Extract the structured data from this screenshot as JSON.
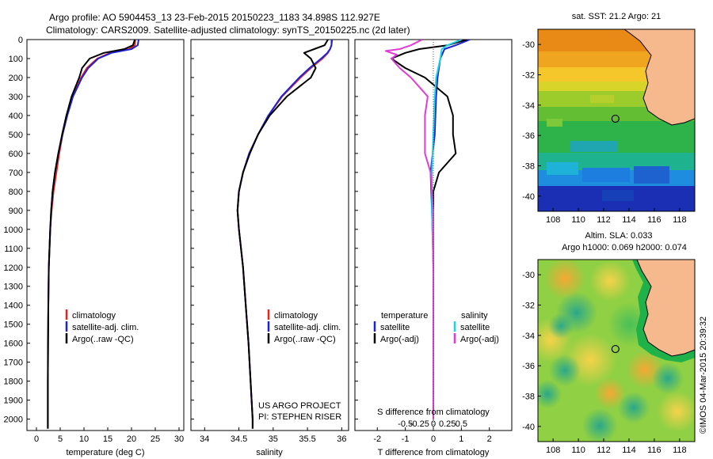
{
  "header": {
    "line1": "Argo profile: AO 5904453_13 23-Feb-2015 20150223_1183 34.898S 112.927E",
    "line2": "Climatology: CARS2009. Satellite-adjusted climatology: synTS_20150225.nc (2d later)"
  },
  "colors": {
    "climatology": "#e8231a",
    "satellite": "#1e22d6",
    "argo": "#000000",
    "salinity_satellite": "#19d6e6",
    "salinity_argo": "#e23ad6",
    "land": "#f5b98d"
  },
  "chart_data": [
    {
      "type": "line",
      "name": "temperature-profile",
      "xlabel": "temperature (deg C)",
      "xlim": [
        -2,
        31
      ],
      "ylim": [
        2060,
        0
      ],
      "xticks": [
        0,
        5,
        10,
        15,
        20,
        25,
        30
      ],
      "yticks": [
        0,
        100,
        200,
        300,
        400,
        500,
        600,
        700,
        800,
        900,
        1000,
        1100,
        1200,
        1300,
        1400,
        1500,
        1600,
        1700,
        1800,
        1900,
        2000
      ],
      "legend": [
        "climatology",
        "satellite-adj. clim.",
        "Argo(..raw -QC)"
      ],
      "series": [
        {
          "name": "climatology",
          "color": "#e8231a",
          "depth": [
            0,
            30,
            50,
            70,
            100,
            150,
            200,
            300,
            400,
            500,
            600,
            700,
            800,
            900,
            1000,
            1200,
            1400,
            1600,
            1800,
            2000,
            2050
          ],
          "values": [
            20.8,
            20.7,
            19.5,
            15.5,
            12.8,
            10.6,
            9.4,
            7.6,
            6.4,
            5.5,
            4.8,
            4.2,
            3.6,
            3.2,
            2.9,
            2.6,
            2.5,
            2.4,
            2.4,
            2.4,
            2.4
          ]
        },
        {
          "name": "satellite-adj. clim.",
          "color": "#1e22d6",
          "depth": [
            0,
            30,
            50,
            70,
            100,
            150,
            200,
            300,
            400,
            500,
            600,
            700,
            800,
            900,
            1000,
            1200,
            1400,
            1600,
            1800,
            2000,
            2050
          ],
          "values": [
            21.5,
            21.3,
            20.0,
            15.8,
            13.0,
            10.9,
            9.6,
            7.7,
            6.5,
            5.5,
            4.6,
            3.9,
            3.4,
            3.1,
            2.9,
            2.6,
            2.5,
            2.45,
            2.4,
            2.4,
            2.4
          ]
        },
        {
          "name": "Argo(..raw -QC)",
          "color": "#000000",
          "depth": [
            0,
            30,
            50,
            70,
            100,
            150,
            200,
            300,
            400,
            500,
            600,
            700,
            800,
            900,
            1000,
            1200,
            1400,
            1600,
            1800,
            2000,
            2050
          ],
          "values": [
            20.7,
            20.3,
            18.5,
            14.2,
            11.2,
            9.6,
            9.0,
            7.4,
            6.3,
            5.4,
            4.6,
            3.9,
            3.4,
            3.1,
            2.9,
            2.6,
            2.5,
            2.45,
            2.4,
            2.4,
            2.4
          ]
        }
      ]
    },
    {
      "type": "line",
      "name": "salinity-profile",
      "xlabel": "salinity",
      "xlim": [
        33.8,
        36.1
      ],
      "ylim": [
        2060,
        0
      ],
      "xticks": [
        34,
        34.5,
        35,
        35.5,
        36
      ],
      "legend": [
        "climatology",
        "satellite-adj. clim.",
        "Argo(..raw -QC)"
      ],
      "annotations": [
        "US ARGO PROJECT",
        "PI: STEPHEN RISER"
      ],
      "series": [
        {
          "name": "climatology",
          "color": "#e8231a",
          "depth": [
            0,
            30,
            50,
            70,
            100,
            150,
            200,
            300,
            400,
            500,
            600,
            700,
            800,
            900,
            1000,
            1200,
            1400,
            1600,
            1800,
            2000,
            2050
          ],
          "values": [
            35.85,
            35.85,
            35.83,
            35.8,
            35.72,
            35.55,
            35.4,
            35.13,
            34.93,
            34.78,
            34.65,
            34.56,
            34.5,
            34.48,
            34.5,
            34.56,
            34.6,
            34.64,
            34.67,
            34.7,
            34.7
          ]
        },
        {
          "name": "satellite-adj. clim.",
          "color": "#1e22d6",
          "depth": [
            0,
            30,
            50,
            70,
            100,
            150,
            200,
            300,
            400,
            500,
            600,
            700,
            800,
            900,
            1000,
            1200,
            1400,
            1600,
            1800,
            2000,
            2050
          ],
          "values": [
            35.86,
            35.85,
            35.83,
            35.79,
            35.7,
            35.53,
            35.38,
            35.12,
            34.93,
            34.78,
            34.65,
            34.56,
            34.5,
            34.48,
            34.5,
            34.56,
            34.6,
            34.64,
            34.67,
            34.7,
            34.7
          ]
        },
        {
          "name": "Argo(..raw -QC)",
          "color": "#000000",
          "depth": [
            0,
            30,
            50,
            70,
            100,
            150,
            200,
            300,
            400,
            500,
            600,
            700,
            800,
            900,
            1000,
            1200,
            1400,
            1600,
            1800,
            2000,
            2050
          ],
          "values": [
            35.8,
            35.75,
            35.6,
            35.45,
            35.55,
            35.62,
            35.55,
            35.2,
            34.95,
            34.78,
            34.66,
            34.56,
            34.5,
            34.48,
            34.5,
            34.56,
            34.6,
            34.64,
            34.67,
            34.7,
            34.7
          ]
        }
      ]
    },
    {
      "type": "line",
      "name": "difference-profile",
      "xlabel": "T difference from climatology",
      "xlabel_top": "S difference from climatology",
      "xlim": [
        -2.8,
        2.8
      ],
      "ylim": [
        2060,
        0
      ],
      "xticks": [
        -2,
        -1,
        0,
        1,
        2
      ],
      "xticks_top": [
        "-0.5",
        "-0.25",
        "0",
        "0.25",
        "0.5"
      ],
      "legend_titles": [
        "temperature",
        "salinity"
      ],
      "legend": [
        "satellite",
        "Argo(-adj)",
        "satellite",
        "Argo(-adj)"
      ],
      "series": [
        {
          "name": "temperature satellite",
          "color": "#1e22d6",
          "depth": [
            0,
            30,
            50,
            100,
            200,
            300,
            500,
            700,
            900,
            1200,
            1500,
            2000
          ],
          "values": [
            1.3,
            0.8,
            0.4,
            0.25,
            0.15,
            0.1,
            0.05,
            -0.1,
            -0.05,
            0.0,
            0.0,
            0.0
          ]
        },
        {
          "name": "temperature Argo(-adj)",
          "color": "#000000",
          "depth": [
            0,
            30,
            50,
            70,
            100,
            150,
            200,
            300,
            400,
            500,
            600,
            700,
            800,
            900,
            1000,
            1200,
            1400,
            1600,
            1800,
            2000
          ],
          "values": [
            1.2,
            0.5,
            -0.5,
            -1.0,
            -1.5,
            -1.0,
            -0.3,
            0.5,
            0.7,
            0.7,
            0.8,
            0.2,
            0.0,
            0.0,
            0.0,
            0.0,
            0.0,
            0.0,
            0.0,
            0.0
          ]
        },
        {
          "name": "salinity satellite",
          "color": "#19d6e6",
          "depth": [
            0,
            30,
            50,
            100,
            200,
            300,
            500,
            700,
            900,
            1200,
            1500,
            2000
          ],
          "values": [
            1.0,
            0.5,
            0.3,
            0.25,
            0.1,
            0.05,
            0.0,
            -0.05,
            -0.05,
            0.0,
            0.0,
            0.0
          ]
        },
        {
          "name": "salinity Argo(-adj)",
          "color": "#e23ad6",
          "depth": [
            0,
            30,
            50,
            60,
            80,
            100,
            150,
            200,
            300,
            400,
            500,
            600,
            700,
            800,
            900,
            1000,
            1200,
            1400,
            1600,
            1800,
            2000
          ],
          "values": [
            -0.4,
            -0.8,
            -1.2,
            -1.7,
            -1.3,
            -1.5,
            -1.2,
            -0.8,
            -0.2,
            -0.3,
            -0.3,
            -0.3,
            -0.1,
            -0.05,
            0.0,
            0.0,
            0.0,
            0.0,
            0.0,
            0.0,
            0.0
          ]
        }
      ]
    },
    {
      "type": "heatmap",
      "name": "sst-map",
      "title": "sat. SST: 21.2 Argo: 21",
      "xlim": [
        106.8,
        119.2
      ],
      "ylim": [
        -41,
        -29
      ],
      "xticks": [
        108,
        110,
        112,
        114,
        116,
        118
      ],
      "yticks": [
        -30,
        -32,
        -34,
        -36,
        -38,
        -40
      ],
      "marker": {
        "lon": 112.927,
        "lat": -34.898
      }
    },
    {
      "type": "heatmap",
      "name": "sla-map",
      "title": "Altim. SLA: 0.033",
      "subtitle": "Argo h1000: 0.069 h2000: 0.074",
      "xlim": [
        106.8,
        119.2
      ],
      "ylim": [
        -41,
        -29
      ],
      "xticks": [
        108,
        110,
        112,
        114,
        116,
        118
      ],
      "yticks": [
        -30,
        -32,
        -34,
        -36,
        -38,
        -40
      ],
      "marker": {
        "lon": 112.927,
        "lat": -34.898
      }
    }
  ],
  "footer": {
    "credit": "©IMOS 04-Mar-2015 20:39:32"
  }
}
